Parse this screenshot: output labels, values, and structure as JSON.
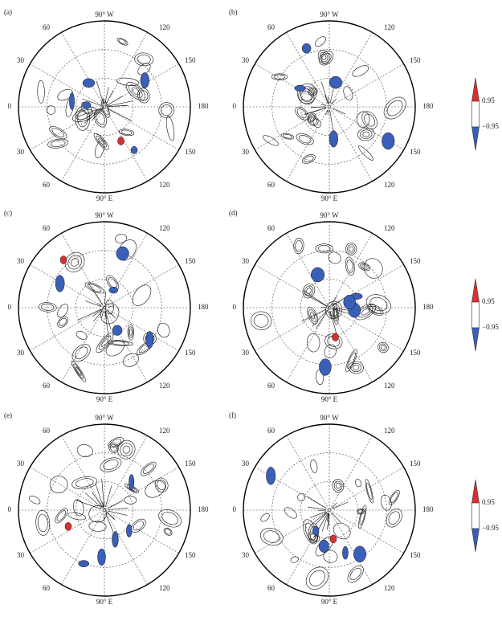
{
  "panels": [
    {
      "label": "(a)",
      "top": "90° W",
      "bottom": "90° E",
      "left_labels": [
        "60",
        "30",
        "0",
        "30",
        "60"
      ],
      "right_labels": [
        "120",
        "150",
        "180",
        "150",
        "120"
      ]
    },
    {
      "label": "(b)",
      "top": "90° W",
      "bottom": "90° E",
      "left_labels": [
        "60",
        "30",
        "0",
        "30",
        "60"
      ],
      "right_labels": [
        "120",
        "150",
        "180",
        "150",
        "120"
      ]
    },
    {
      "label": "(c)",
      "top": "90° W",
      "bottom": "90° E",
      "left_labels": [
        "60",
        "30",
        "0",
        "30",
        "60"
      ],
      "right_labels": [
        "120",
        "150",
        "180",
        "150",
        "120"
      ]
    },
    {
      "label": "(d)",
      "top": "90° W",
      "bottom": "90° E",
      "left_labels": [
        "60",
        "30",
        "0",
        "30",
        "60"
      ],
      "right_labels": [
        "120",
        "150",
        "180",
        "150",
        "120"
      ]
    },
    {
      "label": "(e)",
      "top": "90° W",
      "bottom": "90° E",
      "left_labels": [
        "60",
        "30",
        "0",
        "30",
        "60"
      ],
      "right_labels": [
        "120",
        "150",
        "180",
        "150",
        "120"
      ]
    },
    {
      "label": "(f)",
      "top": "90° W",
      "bottom": "90° E",
      "left_labels": [
        "60",
        "30",
        "0",
        "30",
        "60"
      ],
      "right_labels": [
        "120",
        "150",
        "180",
        "150",
        "120"
      ]
    }
  ],
  "colorbars": [
    {
      "upper": "0.95",
      "lower": "−0.95"
    },
    {
      "upper": "0.95",
      "lower": "−0.95"
    },
    {
      "upper": "0.95",
      "lower": "−0.95"
    }
  ]
}
